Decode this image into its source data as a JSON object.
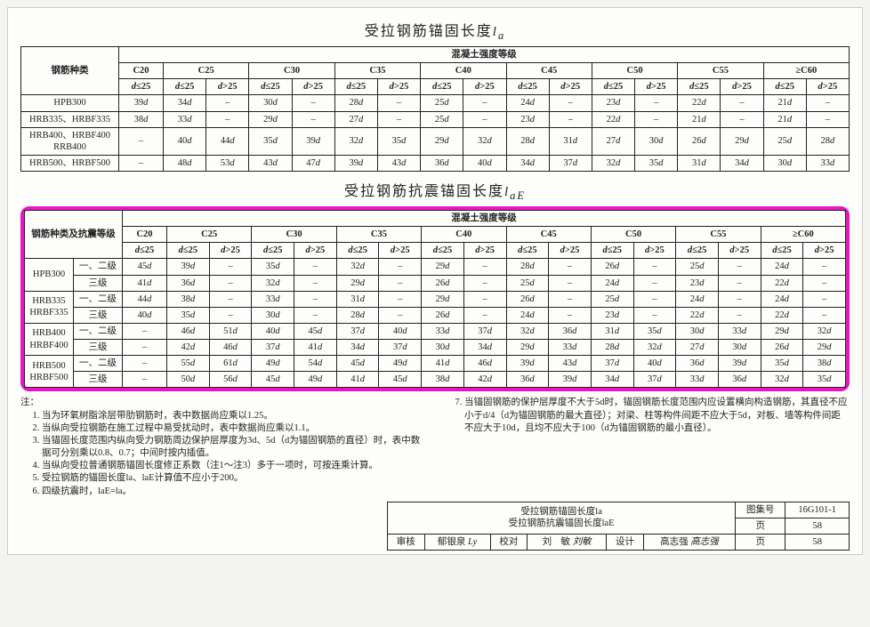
{
  "titles": {
    "t1_prefix": "受拉钢筋锚固长度",
    "t1_sym": "l",
    "t1_sub": "a",
    "t2_prefix": "受拉钢筋抗震锚固长度",
    "t2_sym": "l",
    "t2_sub": "aE"
  },
  "headers": {
    "rebar_type": "钢筋种类",
    "rebar_type_seismic": "钢筋种类及抗震等级",
    "concrete_grade": "混凝土强度等级",
    "grades": [
      "C20",
      "C25",
      "C30",
      "C35",
      "C40",
      "C45",
      "C50",
      "C55",
      "≥C60"
    ],
    "d_le": "d≤25",
    "d_gt": "d>25"
  },
  "table1": {
    "rows": [
      {
        "label": "HPB300",
        "c20": "39d",
        "cells": [
          "34d",
          "–",
          "30d",
          "–",
          "28d",
          "–",
          "25d",
          "–",
          "24d",
          "–",
          "23d",
          "–",
          "22d",
          "–",
          "21d",
          "–"
        ]
      },
      {
        "label": "HRB335、HRBF335",
        "c20": "38d",
        "cells": [
          "33d",
          "–",
          "29d",
          "–",
          "27d",
          "–",
          "25d",
          "–",
          "23d",
          "–",
          "22d",
          "–",
          "21d",
          "–",
          "21d",
          "–"
        ]
      },
      {
        "label": "HRB400、HRBF400\nRRB400",
        "c20": "–",
        "cells": [
          "40d",
          "44d",
          "35d",
          "39d",
          "32d",
          "35d",
          "29d",
          "32d",
          "28d",
          "31d",
          "27d",
          "30d",
          "26d",
          "29d",
          "25d",
          "28d"
        ]
      },
      {
        "label": "HRB500、HRBF500",
        "c20": "–",
        "cells": [
          "48d",
          "53d",
          "43d",
          "47d",
          "39d",
          "43d",
          "36d",
          "40d",
          "34d",
          "37d",
          "32d",
          "35d",
          "31d",
          "34d",
          "30d",
          "33d"
        ]
      }
    ]
  },
  "table2": {
    "groups": [
      {
        "type": "HPB300",
        "rows": [
          {
            "level": "一、二级",
            "c20": "45d",
            "cells": [
              "39d",
              "–",
              "35d",
              "–",
              "32d",
              "–",
              "29d",
              "–",
              "28d",
              "–",
              "26d",
              "–",
              "25d",
              "–",
              "24d",
              "–"
            ]
          },
          {
            "level": "三级",
            "c20": "41d",
            "cells": [
              "36d",
              "–",
              "32d",
              "–",
              "29d",
              "–",
              "26d",
              "–",
              "25d",
              "–",
              "24d",
              "–",
              "23d",
              "–",
              "22d",
              "–"
            ]
          }
        ]
      },
      {
        "type": "HRB335\nHRBF335",
        "rows": [
          {
            "level": "一、二级",
            "c20": "44d",
            "cells": [
              "38d",
              "–",
              "33d",
              "–",
              "31d",
              "–",
              "29d",
              "–",
              "26d",
              "–",
              "25d",
              "–",
              "24d",
              "–",
              "24d",
              "–"
            ]
          },
          {
            "level": "三级",
            "c20": "40d",
            "cells": [
              "35d",
              "–",
              "30d",
              "–",
              "28d",
              "–",
              "26d",
              "–",
              "24d",
              "–",
              "23d",
              "–",
              "22d",
              "–",
              "22d",
              "–"
            ]
          }
        ]
      },
      {
        "type": "HRB400\nHRBF400",
        "rows": [
          {
            "level": "一、二级",
            "c20": "–",
            "cells": [
              "46d",
              "51d",
              "40d",
              "45d",
              "37d",
              "40d",
              "33d",
              "37d",
              "32d",
              "36d",
              "31d",
              "35d",
              "30d",
              "33d",
              "29d",
              "32d"
            ]
          },
          {
            "level": "三级",
            "c20": "–",
            "cells": [
              "42d",
              "46d",
              "37d",
              "41d",
              "34d",
              "37d",
              "30d",
              "34d",
              "29d",
              "33d",
              "28d",
              "32d",
              "27d",
              "30d",
              "26d",
              "29d"
            ]
          }
        ]
      },
      {
        "type": "HRB500\nHRBF500",
        "rows": [
          {
            "level": "一、二级",
            "c20": "–",
            "cells": [
              "55d",
              "61d",
              "49d",
              "54d",
              "45d",
              "49d",
              "41d",
              "46d",
              "39d",
              "43d",
              "37d",
              "40d",
              "36d",
              "39d",
              "35d",
              "38d"
            ]
          },
          {
            "level": "三级",
            "c20": "–",
            "cells": [
              "50d",
              "56d",
              "45d",
              "49d",
              "41d",
              "45d",
              "38d",
              "42d",
              "36d",
              "39d",
              "34d",
              "37d",
              "33d",
              "36d",
              "32d",
              "35d"
            ]
          }
        ]
      }
    ]
  },
  "notes": {
    "prefix": "注：",
    "left": [
      "当为环氧树脂涂层带肋钢筋时，表中数据尚应乘以1.25。",
      "当纵向受拉钢筋在施工过程中易受扰动时，表中数据尚应乘以1.1。",
      "当锚固长度范围内纵向受力钢筋周边保护层厚度为3d、5d（d为锚固钢筋的直径）时，表中数据可分别乘以0.8、0.7；中间时按内插值。",
      "当纵向受拉普通钢筋锚固长度修正系数（注1～注3）多于一项时，可按连乘计算。",
      "受拉钢筋的锚固长度la、laE计算值不应小于200。",
      "四级抗震时，laE=la。"
    ],
    "right": [
      "当锚固钢筋的保护层厚度不大于5d时，锚固钢筋长度范围内应设置横向构造钢筋，其直径不应小于d/4（d为锚固钢筋的最大直径）；对梁、柱等构件间距不应大于5d，对板、墙等构件间距不应大于10d，且均不应大于100（d为锚固钢筋的最小直径）。"
    ]
  },
  "footer": {
    "title1": "受拉钢筋锚固长度la",
    "title2": "受拉钢筋抗震锚固长度laE",
    "set_label": "图集号",
    "set_value": "16G101-1",
    "review": "审核",
    "reviewer": "郁银泉",
    "proof": "校对",
    "proofer": "刘　敏",
    "design": "设计",
    "designer": "高志强",
    "page_label": "页",
    "page_value": "58"
  },
  "style": {
    "highlight_color": "#e815c4",
    "border_color": "#222222",
    "bg": "#fdfdfb"
  }
}
